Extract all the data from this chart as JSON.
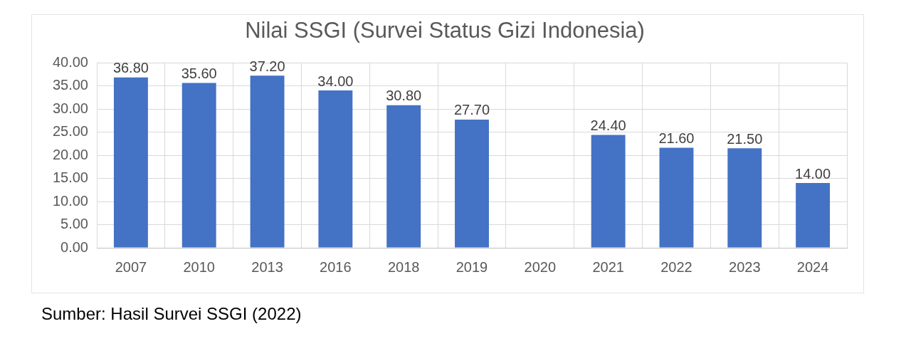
{
  "chart_data": {
    "type": "bar",
    "title": "Nilai SSGI (Survei Status Gizi Indonesia)",
    "categories": [
      "2007",
      "2010",
      "2013",
      "2016",
      "2018",
      "2019",
      "2020",
      "2021",
      "2022",
      "2023",
      "2024"
    ],
    "values": [
      36.8,
      35.6,
      37.2,
      34.0,
      30.8,
      27.7,
      null,
      24.4,
      21.6,
      21.5,
      14.0
    ],
    "value_labels": [
      "36.80",
      "35.60",
      "37.20",
      "34.00",
      "30.80",
      "27.70",
      null,
      "24.40",
      "21.60",
      "21.50",
      "14.00"
    ],
    "color": "#4472c4",
    "ylim": [
      0,
      40
    ],
    "yticks": [
      {
        "value": 0,
        "label": "0.00"
      },
      {
        "value": 5,
        "label": "5.00"
      },
      {
        "value": 10,
        "label": "10.00"
      },
      {
        "value": 15,
        "label": "15.00"
      },
      {
        "value": 20,
        "label": "20.00"
      },
      {
        "value": 25,
        "label": "25.00"
      },
      {
        "value": 30,
        "label": "30.00"
      },
      {
        "value": 35,
        "label": "35.00"
      },
      {
        "value": 40,
        "label": "40.00"
      }
    ],
    "grid": true,
    "annotations": [
      "Sumber: Hasil Survei SSGI (2022)"
    ]
  }
}
